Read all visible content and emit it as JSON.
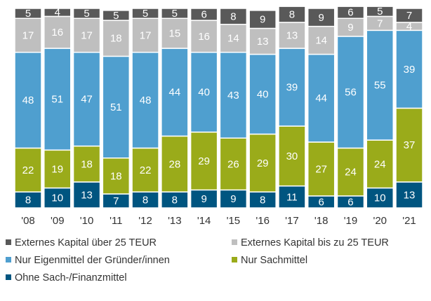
{
  "chart_data": {
    "type": "stacked_bar",
    "categories": [
      "'08",
      "'09",
      "'10",
      "'11",
      "'12",
      "'13",
      "'14",
      "'15",
      "'16",
      "'17",
      "'18",
      "'19",
      "'20",
      "'21"
    ],
    "ylim": [
      0,
      100
    ],
    "legend": "bottom",
    "series": [
      {
        "name": "Externes Kapital über 25 TEUR",
        "color": "#595959",
        "values": [
          5,
          4,
          5,
          5,
          5,
          5,
          6,
          8,
          9,
          8,
          9,
          6,
          5,
          7
        ]
      },
      {
        "name": "Externes Kapital bis zu 25 TEUR",
        "color": "#bfbfbf",
        "values": [
          17,
          16,
          17,
          18,
          17,
          15,
          16,
          14,
          13,
          13,
          14,
          9,
          7,
          4
        ]
      },
      {
        "name": "Nur Eigenmittel der Gründer/innen",
        "color": "#4f9fcf",
        "values": [
          48,
          51,
          47,
          51,
          48,
          44,
          40,
          43,
          40,
          39,
          44,
          56,
          55,
          39
        ]
      },
      {
        "name": "Nur Sachmittel",
        "color": "#9aab1a",
        "values": [
          22,
          19,
          18,
          18,
          22,
          28,
          29,
          26,
          29,
          30,
          27,
          24,
          24,
          37
        ]
      },
      {
        "name": "Ohne Sach-/Finanzmittel",
        "color": "#005580",
        "values": [
          8,
          10,
          13,
          7,
          8,
          8,
          9,
          9,
          8,
          11,
          6,
          6,
          10,
          13
        ]
      }
    ]
  }
}
